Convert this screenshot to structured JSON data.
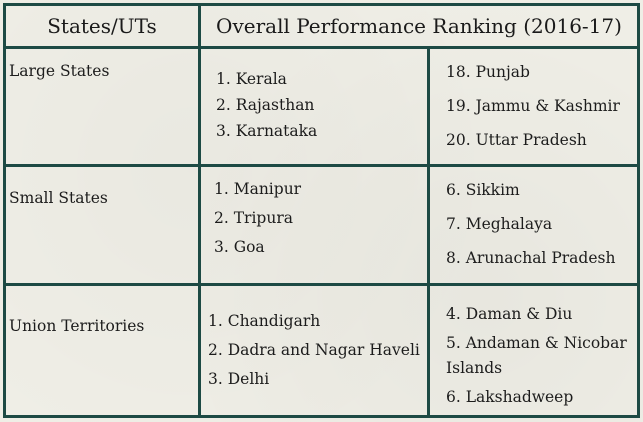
{
  "header": {
    "col1": "States/UTs",
    "col2": "Overall Performance Ranking (2016-17)"
  },
  "rows": [
    {
      "label": "Large States",
      "top": [
        "1. Kerala",
        "2. Rajasthan",
        "3. Karnataka"
      ],
      "bottom": [
        "18. Punjab",
        "19. Jammu & Kashmir",
        "20. Uttar Pradesh"
      ]
    },
    {
      "label": "Small States",
      "top": [
        "1. Manipur",
        "2. Tripura",
        "3. Goa"
      ],
      "bottom": [
        "6. Sikkim",
        "7. Meghalaya",
        "8. Arunachal Pradesh"
      ]
    },
    {
      "label": "Union Territories",
      "top": [
        "1. Chandigarh",
        "2. Dadra and Nagar Haveli",
        "3. Delhi"
      ],
      "bottom": [
        "4. Daman & Diu",
        "5. Andaman & Nicobar Islands",
        "6. Lakshadweep"
      ]
    }
  ]
}
